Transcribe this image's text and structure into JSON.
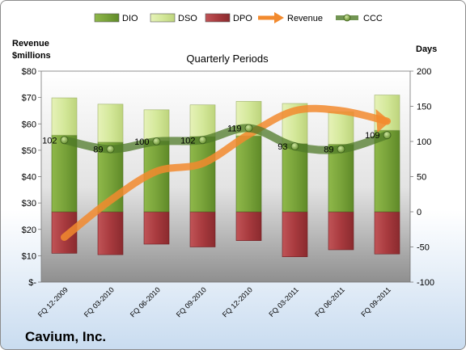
{
  "chart_data": {
    "type": "bar",
    "title": "Quarterly Periods",
    "company": "Cavium, Inc.",
    "left_axis_label_line1": "Revenue",
    "left_axis_label_line2": "$millions",
    "right_axis_label": "Days",
    "left_ylim": [
      0,
      80
    ],
    "right_ylim": [
      -100,
      200
    ],
    "left_ticks": [
      "$-",
      "$10",
      "$20",
      "$30",
      "$40",
      "$50",
      "$60",
      "$70",
      "$80"
    ],
    "right_ticks": [
      "-100",
      "-50",
      "0",
      "50",
      "100",
      "150",
      "200"
    ],
    "categories": [
      "FQ 12-2009",
      "FQ 03-2010",
      "FQ 06-2010",
      "FQ 09-2010",
      "FQ 12-2010",
      "FQ 03-2011",
      "FQ 06-2011",
      "FQ 09-2011"
    ],
    "grid": false,
    "legend_position": "top",
    "series": [
      {
        "name": "DIO",
        "color": "#79a33a",
        "values": [
          109,
          99,
          101,
          107,
          108,
          97,
          96,
          116
        ]
      },
      {
        "name": "DSO",
        "color": "#d8eaa0",
        "values": [
          53,
          54,
          44,
          45,
          49,
          57,
          46,
          50
        ]
      },
      {
        "name": "DPO",
        "color": "#a83a3e",
        "values": [
          -59,
          -61,
          -46,
          -50,
          -41,
          -64,
          -54,
          -60
        ]
      },
      {
        "name": "Revenue",
        "color": "#f28a2e",
        "values": [
          17,
          31,
          42,
          45,
          56,
          65,
          65,
          61
        ]
      },
      {
        "name": "CCC",
        "color": "#4f7a28",
        "values": [
          102,
          89,
          100,
          102,
          119,
          93,
          89,
          109
        ]
      }
    ],
    "ccc_labels": [
      "102",
      "89",
      "100",
      "102",
      "119",
      "93",
      "89",
      "109"
    ]
  }
}
